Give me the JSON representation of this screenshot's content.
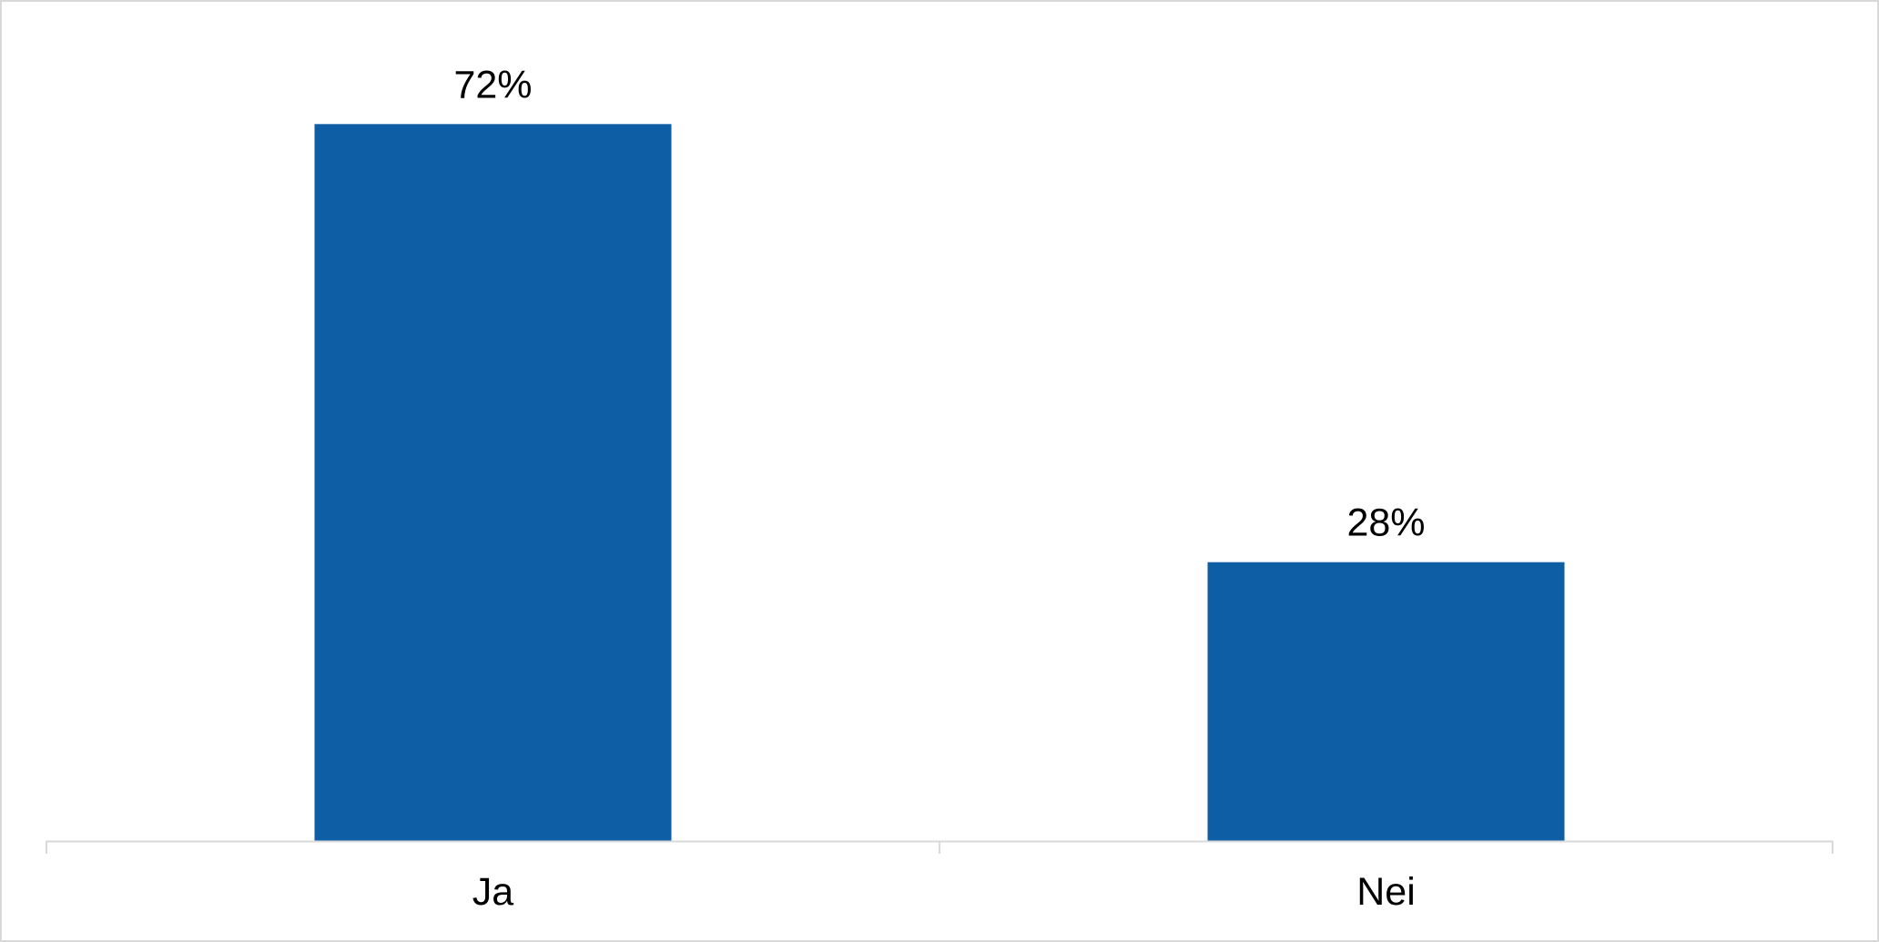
{
  "chart_data": {
    "type": "bar",
    "categories": [
      "Ja",
      "Nei"
    ],
    "values": [
      72,
      28
    ],
    "value_labels": [
      "72%",
      "28%"
    ],
    "unit": "%",
    "ylim": [
      0,
      76
    ],
    "grid": false,
    "legend": "none",
    "colors": {
      "bar": "#0e5ea6",
      "axis": "#d9d9d9",
      "text": "#000000"
    }
  }
}
